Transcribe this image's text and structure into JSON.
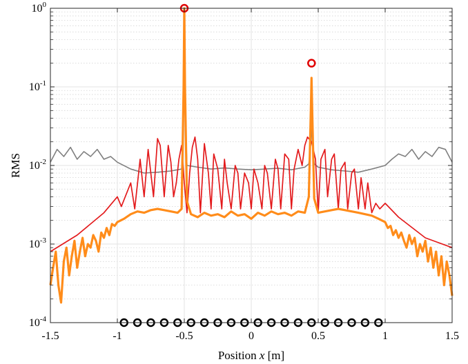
{
  "chart_data": {
    "type": "line",
    "title": "",
    "xlabel_prefix": "Position ",
    "xlabel_var": "x",
    "xlabel_suffix": " [m]",
    "ylabel": "RMS",
    "xlim": [
      -1.5,
      1.5
    ],
    "ylim": [
      0.0001,
      1
    ],
    "yscale": "log",
    "grid": true,
    "minor_grid": true,
    "legend": "none",
    "x_ticks": [
      -1.5,
      -1,
      -0.5,
      0,
      0.5,
      1,
      1.5
    ],
    "x_tick_labels": [
      "-1.5",
      "-1",
      "-0.5",
      "0",
      "0.5",
      "1",
      "1.5"
    ],
    "y_ticks": [
      0.0001,
      0.001,
      0.01,
      0.1,
      1
    ],
    "y_tick_labels": [
      {
        "base": "10",
        "exp": "-4"
      },
      {
        "base": "10",
        "exp": "-3"
      },
      {
        "base": "10",
        "exp": "-2"
      },
      {
        "base": "10",
        "exp": "-1"
      },
      {
        "base": "10",
        "exp": "0"
      }
    ],
    "series": [
      {
        "color": "#7f7f7f",
        "x": [
          -1.5,
          -1.45,
          -1.4,
          -1.35,
          -1.3,
          -1.25,
          -1.2,
          -1.15,
          -1.1,
          -1.05,
          -1.0,
          -0.9,
          -0.8,
          -0.7,
          -0.6,
          -0.52,
          -0.505,
          -0.5,
          -0.495,
          -0.48,
          -0.4,
          -0.3,
          -0.2,
          -0.1,
          0.0,
          0.1,
          0.2,
          0.3,
          0.4,
          0.43,
          0.445,
          0.45,
          0.455,
          0.47,
          0.5,
          0.6,
          0.7,
          0.8,
          0.9,
          1.0,
          1.05,
          1.1,
          1.15,
          1.2,
          1.25,
          1.3,
          1.35,
          1.4,
          1.45,
          1.5
        ],
        "y": [
          0.011,
          0.016,
          0.013,
          0.017,
          0.012,
          0.015,
          0.013,
          0.016,
          0.012,
          0.013,
          0.011,
          0.009,
          0.008,
          0.0082,
          0.0085,
          0.009,
          0.05,
          0.35,
          0.05,
          0.01,
          0.0095,
          0.009,
          0.0093,
          0.009,
          0.0088,
          0.009,
          0.0092,
          0.0088,
          0.0095,
          0.0105,
          0.02,
          0.045,
          0.02,
          0.0105,
          0.0095,
          0.0088,
          0.0085,
          0.0082,
          0.009,
          0.01,
          0.012,
          0.014,
          0.013,
          0.016,
          0.012,
          0.015,
          0.013,
          0.017,
          0.016,
          0.011
        ]
      },
      {
        "color": "#e31a1c",
        "x": [
          -1.5,
          -1.3,
          -1.1,
          -1.0,
          -0.97,
          -0.9,
          -0.87,
          -0.83,
          -0.8,
          -0.77,
          -0.73,
          -0.7,
          -0.68,
          -0.65,
          -0.62,
          -0.6,
          -0.58,
          -0.56,
          -0.54,
          -0.52,
          -0.5,
          -0.48,
          -0.46,
          -0.44,
          -0.42,
          -0.4,
          -0.38,
          -0.35,
          -0.32,
          -0.3,
          -0.28,
          -0.25,
          -0.22,
          -0.2,
          -0.18,
          -0.15,
          -0.12,
          -0.1,
          -0.08,
          -0.05,
          -0.02,
          0.0,
          0.02,
          0.05,
          0.08,
          0.1,
          0.12,
          0.15,
          0.18,
          0.2,
          0.22,
          0.25,
          0.28,
          0.3,
          0.32,
          0.35,
          0.38,
          0.4,
          0.42,
          0.45,
          0.48,
          0.5,
          0.52,
          0.55,
          0.57,
          0.6,
          0.62,
          0.65,
          0.67,
          0.7,
          0.72,
          0.75,
          0.77,
          0.8,
          0.82,
          0.85,
          0.87,
          0.9,
          0.93,
          0.96,
          1.0,
          1.1,
          1.3,
          1.5
        ],
        "y": [
          0.0008,
          0.0013,
          0.0025,
          0.004,
          0.003,
          0.006,
          0.0028,
          0.012,
          0.004,
          0.016,
          0.004,
          0.022,
          0.018,
          0.004,
          0.018,
          0.011,
          0.004,
          0.006,
          0.012,
          0.018,
          0.006,
          0.0025,
          0.008,
          0.017,
          0.023,
          0.012,
          0.0025,
          0.019,
          0.008,
          0.0028,
          0.014,
          0.009,
          0.0028,
          0.012,
          0.006,
          0.0028,
          0.01,
          0.008,
          0.0028,
          0.008,
          0.006,
          0.0028,
          0.009,
          0.006,
          0.0028,
          0.01,
          0.008,
          0.0028,
          0.012,
          0.009,
          0.0028,
          0.014,
          0.012,
          0.0028,
          0.009,
          0.016,
          0.01,
          0.018,
          0.023,
          0.02,
          0.012,
          0.0025,
          0.012,
          0.016,
          0.004,
          0.012,
          0.014,
          0.0028,
          0.009,
          0.011,
          0.0028,
          0.008,
          0.009,
          0.0028,
          0.007,
          0.0028,
          0.006,
          0.0025,
          0.0033,
          0.0028,
          0.0033,
          0.0022,
          0.0012,
          0.0009
        ]
      },
      {
        "color": "#ff8c1a",
        "x": [
          -1.5,
          -1.48,
          -1.46,
          -1.44,
          -1.42,
          -1.4,
          -1.38,
          -1.36,
          -1.34,
          -1.32,
          -1.3,
          -1.28,
          -1.26,
          -1.24,
          -1.22,
          -1.2,
          -1.18,
          -1.16,
          -1.14,
          -1.12,
          -1.1,
          -1.08,
          -1.06,
          -1.04,
          -1.02,
          -1.0,
          -0.95,
          -0.9,
          -0.85,
          -0.8,
          -0.75,
          -0.7,
          -0.65,
          -0.6,
          -0.55,
          -0.52,
          -0.505,
          -0.5,
          -0.495,
          -0.48,
          -0.45,
          -0.4,
          -0.35,
          -0.3,
          -0.25,
          -0.2,
          -0.15,
          -0.1,
          -0.05,
          0.0,
          0.05,
          0.1,
          0.15,
          0.2,
          0.25,
          0.3,
          0.35,
          0.4,
          0.43,
          0.445,
          0.45,
          0.455,
          0.47,
          0.5,
          0.55,
          0.6,
          0.65,
          0.7,
          0.75,
          0.8,
          0.85,
          0.9,
          0.95,
          1.0,
          1.02,
          1.04,
          1.06,
          1.08,
          1.1,
          1.12,
          1.14,
          1.16,
          1.18,
          1.2,
          1.22,
          1.24,
          1.26,
          1.28,
          1.3,
          1.32,
          1.34,
          1.36,
          1.38,
          1.4,
          1.42,
          1.44,
          1.46,
          1.48,
          1.5
        ],
        "y": [
          0.0003,
          0.0005,
          0.0008,
          0.0003,
          0.00018,
          0.0006,
          0.0009,
          0.0004,
          0.0007,
          0.0011,
          0.0005,
          0.0008,
          0.0012,
          0.0007,
          0.001,
          0.0009,
          0.0013,
          0.0011,
          0.0008,
          0.0014,
          0.0012,
          0.0016,
          0.0013,
          0.0018,
          0.0017,
          0.0019,
          0.0021,
          0.0024,
          0.0026,
          0.0025,
          0.0027,
          0.0028,
          0.0027,
          0.0026,
          0.0025,
          0.0028,
          0.1,
          1.0,
          0.1,
          0.0035,
          0.0024,
          0.0022,
          0.0025,
          0.0023,
          0.0024,
          0.0022,
          0.0026,
          0.0023,
          0.0024,
          0.0021,
          0.0025,
          0.0023,
          0.0026,
          0.0024,
          0.0025,
          0.0023,
          0.0026,
          0.0025,
          0.004,
          0.05,
          0.13,
          0.05,
          0.0038,
          0.0025,
          0.0026,
          0.0027,
          0.0028,
          0.0027,
          0.0026,
          0.0025,
          0.0024,
          0.0023,
          0.0021,
          0.0019,
          0.0016,
          0.0017,
          0.0013,
          0.0015,
          0.0012,
          0.0014,
          0.0011,
          0.0009,
          0.0013,
          0.001,
          0.0012,
          0.0007,
          0.001,
          0.0008,
          0.0011,
          0.0006,
          0.0009,
          0.0005,
          0.0008,
          0.0004,
          0.0007,
          0.0003,
          0.0006,
          0.0004,
          0.00022
        ]
      }
    ],
    "markers_red": [
      {
        "x": -0.5,
        "y": 1.0
      },
      {
        "x": 0.45,
        "y": 0.2
      }
    ],
    "markers_black": {
      "y": 0.0001,
      "x": [
        -0.95,
        -0.85,
        -0.75,
        -0.65,
        -0.55,
        -0.45,
        -0.35,
        -0.25,
        -0.15,
        -0.05,
        0.05,
        0.15,
        0.25,
        0.35,
        0.45,
        0.55,
        0.65,
        0.75,
        0.85,
        0.95
      ]
    }
  }
}
